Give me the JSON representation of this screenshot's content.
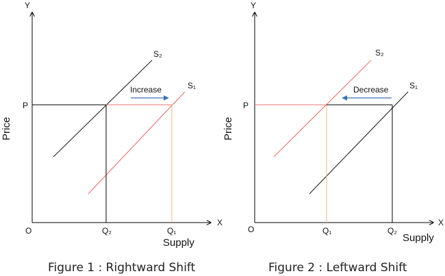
{
  "figure1": {
    "axis_y": "Y",
    "axis_x": "X",
    "origin": "O",
    "price_label": "Price",
    "p_label": "P",
    "q2_label": "Q₂",
    "q1_label": "Q₁",
    "supply_label": "Supply",
    "s2_label": "S₂",
    "s1_label": "S₁",
    "arrow_label": "Increase",
    "caption": "Figure 1  : Rightward Shift"
  },
  "figure2": {
    "axis_y": "Y",
    "axis_x": "X",
    "origin": "O",
    "price_label": "Price",
    "p_label": "P",
    "q1_label": "Q₁",
    "q2_label": "Q₂",
    "supply_label": "Supply",
    "s2_label": "S₂",
    "s1_label": "S₁",
    "arrow_label": "Decrease",
    "caption": "Figure 2 : Leftward Shift"
  },
  "colors": {
    "axis": "#000000",
    "original_curve": "#222222",
    "shifted_curve": "#e8736c",
    "guide_red": "#e8736c",
    "guide_orange": "#f2b38a",
    "arrow": "#3d6fb5"
  }
}
